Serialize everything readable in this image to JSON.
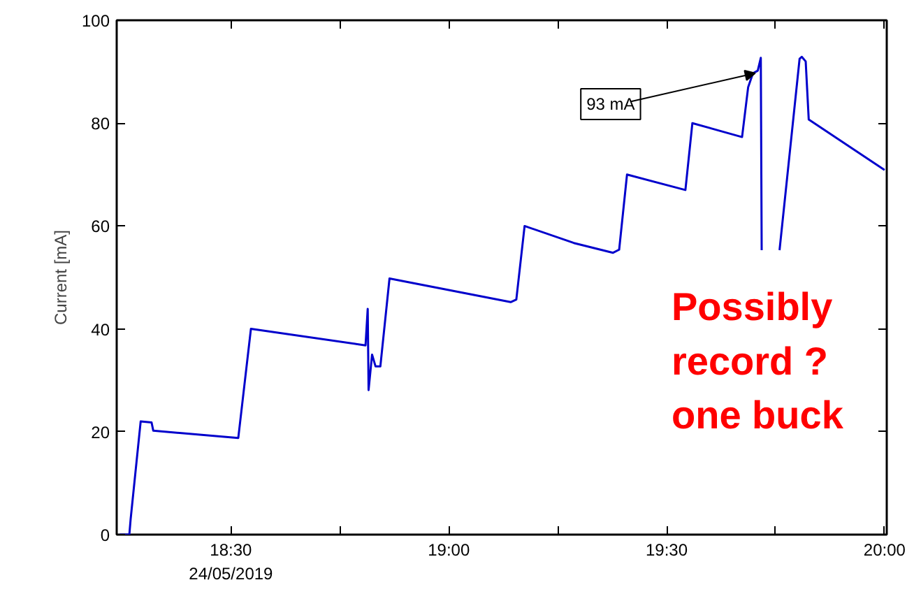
{
  "chart_data": {
    "type": "line",
    "ylabel": "Current [mA]",
    "x": [
      18.245,
      18.267,
      18.27,
      18.293,
      18.318,
      18.322,
      18.517,
      18.546,
      18.809,
      18.814,
      18.816,
      18.824,
      18.832,
      18.843,
      18.864,
      19.142,
      19.155,
      19.174,
      19.287,
      19.377,
      19.391,
      19.409,
      19.543,
      19.559,
      19.673,
      19.687,
      19.698,
      19.709,
      19.716,
      19.718,
      19.738,
      19.759,
      19.805,
      19.81,
      19.819,
      19.826,
      20.0
    ],
    "series": [
      {
        "color": "#0000cc",
        "values": [
          0,
          0,
          3,
          22,
          21.8,
          20.2,
          18.8,
          40,
          36.8,
          43.9,
          28.1,
          35,
          32.7,
          32.7,
          49.8,
          45.2,
          45.7,
          60,
          56.7,
          54.8,
          55.4,
          70,
          67,
          80,
          77.3,
          87,
          89.7,
          90.2,
          92.7,
          55.3,
          null,
          55.3,
          92.5,
          92.9,
          92,
          80.7,
          70.9
        ]
      }
    ],
    "xlim": [
      18.238,
      20.005
    ],
    "ylim": [
      0,
      100
    ],
    "xticks": [
      {
        "value": 18.5,
        "label": "18:30\n24/05/2019"
      },
      {
        "value": 18.75,
        "label": null
      },
      {
        "value": 19,
        "label": "19:00"
      },
      {
        "value": 19.25,
        "label": null
      },
      {
        "value": 19.5,
        "label": "19:30"
      },
      {
        "value": 19.75,
        "label": null
      },
      {
        "value": 20,
        "label": "20:00"
      }
    ],
    "yticks": [
      0,
      20,
      40,
      60,
      80,
      100
    ],
    "grid": false,
    "line_style": "solid",
    "marker": "none",
    "annotations": [
      {
        "text": "93 mA",
        "x": 19.703,
        "y": 89.7
      },
      "Possibly\nrecord ?\none buck"
    ]
  }
}
